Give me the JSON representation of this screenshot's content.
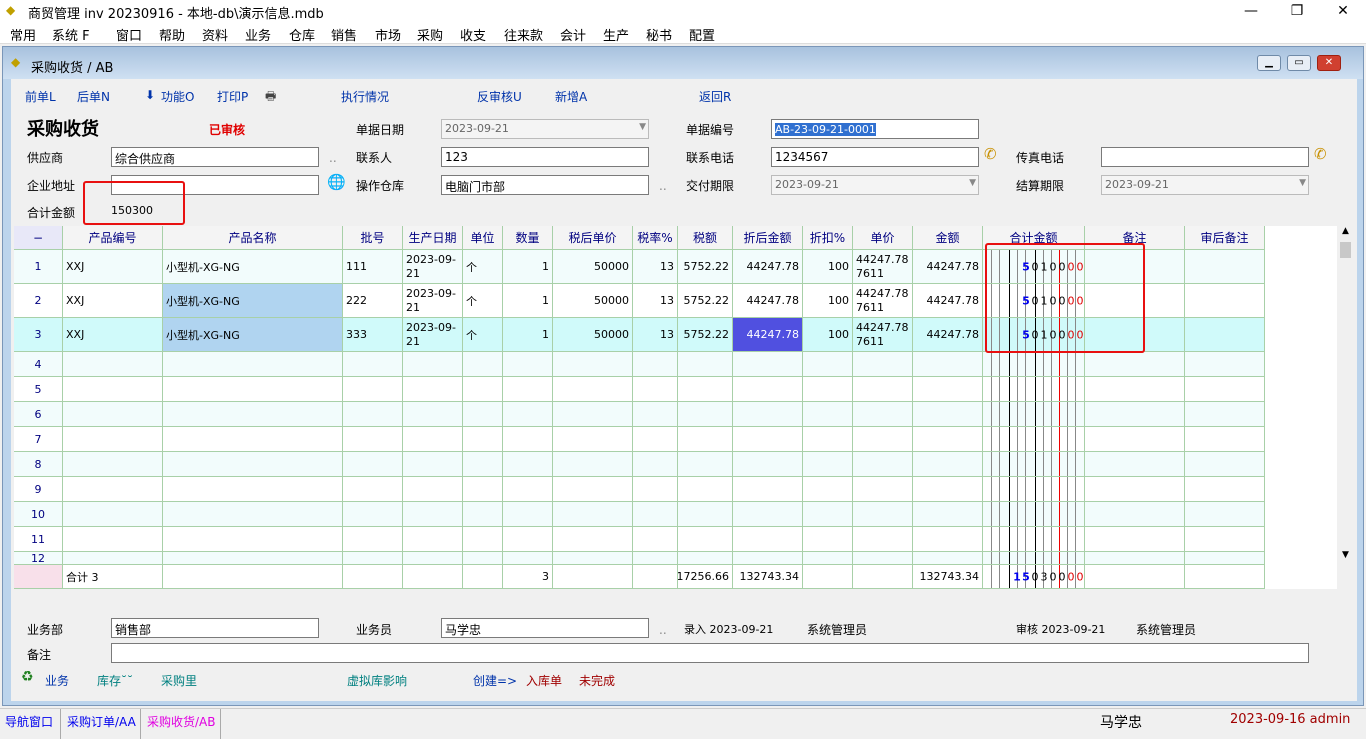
{
  "app": {
    "title": "商贸管理 inv 20230916 - 本地-db\\演示信息.mdb"
  },
  "menu": [
    "常用",
    "系统 F",
    "窗口",
    "帮助",
    "资料",
    "业务",
    "仓库",
    "销售",
    "市场",
    "采购",
    "收支",
    "往来款",
    "会计",
    "生产",
    "秘书",
    "配置"
  ],
  "child": {
    "title": "采购收货 / AB"
  },
  "toolbar": {
    "prev": "前单L",
    "next": "后单N",
    "func": "功能O",
    "print": "打印P",
    "exec": "执行情况",
    "unaudit": "反审核U",
    "add": "新增A",
    "back": "返回R"
  },
  "header": {
    "form_title": "采购收货",
    "status": "已审核",
    "doc_date_label": "单据日期",
    "doc_date": "2023-09-21",
    "doc_no_label": "单据编号",
    "doc_no": "AB-23-09-21-0001",
    "supplier_label": "供应商",
    "supplier": "综合供应商",
    "contact_label": "联系人",
    "contact": "123",
    "phone_label": "联系电话",
    "phone": "1234567",
    "fax_label": "传真电话",
    "fax": "",
    "address_label": "企业地址",
    "address": "",
    "warehouse_label": "操作仓库",
    "warehouse": "电脑门市部",
    "delivery_label": "交付期限",
    "delivery": "2023-09-21",
    "settle_label": "结算期限",
    "settle": "2023-09-21",
    "total_label": "合计金额",
    "total": "150300"
  },
  "table": {
    "columns": [
      "−",
      "产品编号",
      "产品名称",
      "批号",
      "生产日期",
      "单位",
      "数量",
      "税后单价",
      "税率%",
      "税额",
      "折后金额",
      "折扣%",
      "单价",
      "金额",
      "合计金额",
      "备注",
      "审后备注"
    ],
    "rows": [
      [
        "1",
        "XXJ",
        "小型机-XG-NG",
        "111",
        "2023-09-21",
        "个",
        "1",
        "50000",
        "13",
        "5752.22",
        "44247.78",
        "100",
        "44247.787611",
        "44247.78",
        "5010000",
        "",
        ""
      ],
      [
        "2",
        "XXJ",
        "小型机-XG-NG",
        "222",
        "2023-09-21",
        "个",
        "1",
        "50000",
        "13",
        "5752.22",
        "44247.78",
        "100",
        "44247.787611",
        "44247.78",
        "5010000",
        "",
        ""
      ],
      [
        "3",
        "XXJ",
        "小型机-XG-NG",
        "333",
        "2023-09-21",
        "个",
        "1",
        "50000",
        "13",
        "5752.22",
        "44247.78",
        "100",
        "44247.787611",
        "44247.78",
        "5010000",
        "",
        ""
      ]
    ],
    "empty_rows": [
      "4",
      "5",
      "6",
      "7",
      "8",
      "9",
      "10",
      "11",
      "12"
    ],
    "totals": {
      "label": "合计 3",
      "qty": "3",
      "tax": "17256.66",
      "discounted": "132743.34",
      "amount": "132743.34",
      "digits": "15030000"
    }
  },
  "footer": {
    "dept_label": "业务部",
    "dept": "销售部",
    "staff_label": "业务员",
    "staff": "马学忠",
    "entry": "录入 2023-09-21",
    "entry_user": "系统管理员",
    "audit": "审核 2023-09-21",
    "audit_user": "系统管理员",
    "remark_label": "备注",
    "remark": "",
    "links": {
      "biz": "业务",
      "stock": "库存˘˘",
      "purchase_qty": "采购里",
      "virtual": "虚拟库影响",
      "create": "创建=>",
      "inbound": "入库单",
      "incomplete": "未完成"
    }
  },
  "taskbar": {
    "tabs": [
      "导航窗口",
      "采购订单/AA",
      "采购收货/AB"
    ],
    "user": "马学忠",
    "datetime": "2023-09-16 admin"
  },
  "colors": {
    "link": "#0033aa",
    "status": "#e00000",
    "selected_cell": "#5050e0",
    "row_alt": "#f2fcfc",
    "row_current": "#d0fafa",
    "highlight_cell": "#b0d4f0"
  }
}
